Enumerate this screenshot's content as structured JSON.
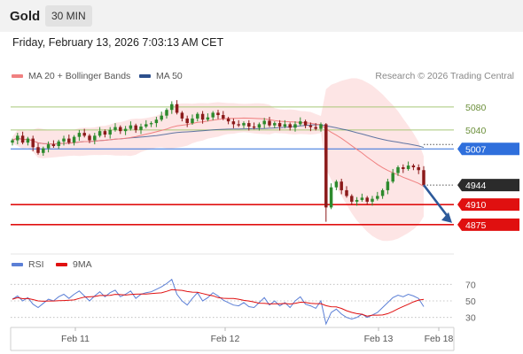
{
  "header": {
    "title": "Gold",
    "timeframe": "30 MIN"
  },
  "datetime": "Friday, February 13, 2026 7:03:13 AM CET",
  "legend": {
    "ma20_label": "MA 20 + Bollinger Bands",
    "ma50_label": "MA 50",
    "credit": "Research © 2026 Trading Central",
    "rsi_label": "RSI",
    "ma9_label": "9MA"
  },
  "colors": {
    "ma20": "#f08080",
    "ma50": "#2c4f8c",
    "band_fill": "#fde0e0",
    "resistance": "#a8c878",
    "pivot": "#2f6fdc",
    "support": "#e01010",
    "candle_up": "#2d8a2d",
    "candle_down": "#8b1a1a",
    "rsi": "#5b7fd6",
    "rsi_ma": "#e01010",
    "arrow": "#2d5a9a"
  },
  "chart_data": [
    {
      "type": "candlestick",
      "title": "",
      "x_ticks": [
        "Feb 11",
        "Feb 12",
        "Feb 13",
        "Feb 18"
      ],
      "ylim": [
        4830,
        5120
      ],
      "levels": [
        {
          "value": 5080,
          "label": "5080",
          "kind": "resistance"
        },
        {
          "value": 5040,
          "label": "5040",
          "kind": "resistance"
        },
        {
          "value": 5007,
          "label": "5007",
          "kind": "pivot"
        },
        {
          "value": 4944,
          "label": "4944",
          "kind": "last"
        },
        {
          "value": 4910,
          "label": "4910",
          "kind": "support"
        },
        {
          "value": 4875,
          "label": "4875",
          "kind": "support"
        }
      ],
      "close": [
        5022,
        5030,
        5018,
        5025,
        5010,
        5000,
        5008,
        5015,
        5012,
        5020,
        5025,
        5018,
        5028,
        5035,
        5030,
        5022,
        5030,
        5038,
        5032,
        5040,
        5045,
        5038,
        5042,
        5048,
        5040,
        5046,
        5050,
        5052,
        5058,
        5065,
        5075,
        5085,
        5070,
        5060,
        5052,
        5060,
        5068,
        5058,
        5062,
        5070,
        5066,
        5060,
        5055,
        5050,
        5048,
        5052,
        5046,
        5044,
        5050,
        5056,
        5048,
        5052,
        5046,
        5050,
        5044,
        5050,
        5055,
        5048,
        5045,
        5042,
        5050,
        4905,
        4940,
        4950,
        4935,
        4925,
        4915,
        4918,
        4922,
        4915,
        4920,
        4925,
        4935,
        4950,
        4965,
        4975,
        4972,
        4978,
        4975,
        4970,
        4944
      ],
      "ma20_label": "MA 20 + Bollinger Bands",
      "ma50_label": "MA 50"
    },
    {
      "type": "line",
      "title": "",
      "series": [
        {
          "name": "RSI"
        },
        {
          "name": "9MA"
        }
      ],
      "y_ticks": [
        70,
        50,
        30
      ],
      "ylim": [
        20,
        80
      ],
      "rsi_values": [
        52,
        56,
        50,
        54,
        46,
        42,
        47,
        52,
        50,
        55,
        58,
        53,
        58,
        62,
        56,
        50,
        56,
        61,
        55,
        60,
        63,
        55,
        58,
        62,
        53,
        58,
        60,
        61,
        64,
        67,
        71,
        76,
        58,
        50,
        45,
        53,
        60,
        50,
        54,
        60,
        56,
        51,
        48,
        45,
        44,
        48,
        43,
        42,
        48,
        54,
        45,
        50,
        44,
        48,
        42,
        50,
        55,
        46,
        44,
        41,
        50,
        22,
        36,
        40,
        34,
        30,
        28,
        30,
        34,
        30,
        33,
        36,
        42,
        48,
        54,
        57,
        55,
        58,
        56,
        53,
        43
      ]
    }
  ]
}
